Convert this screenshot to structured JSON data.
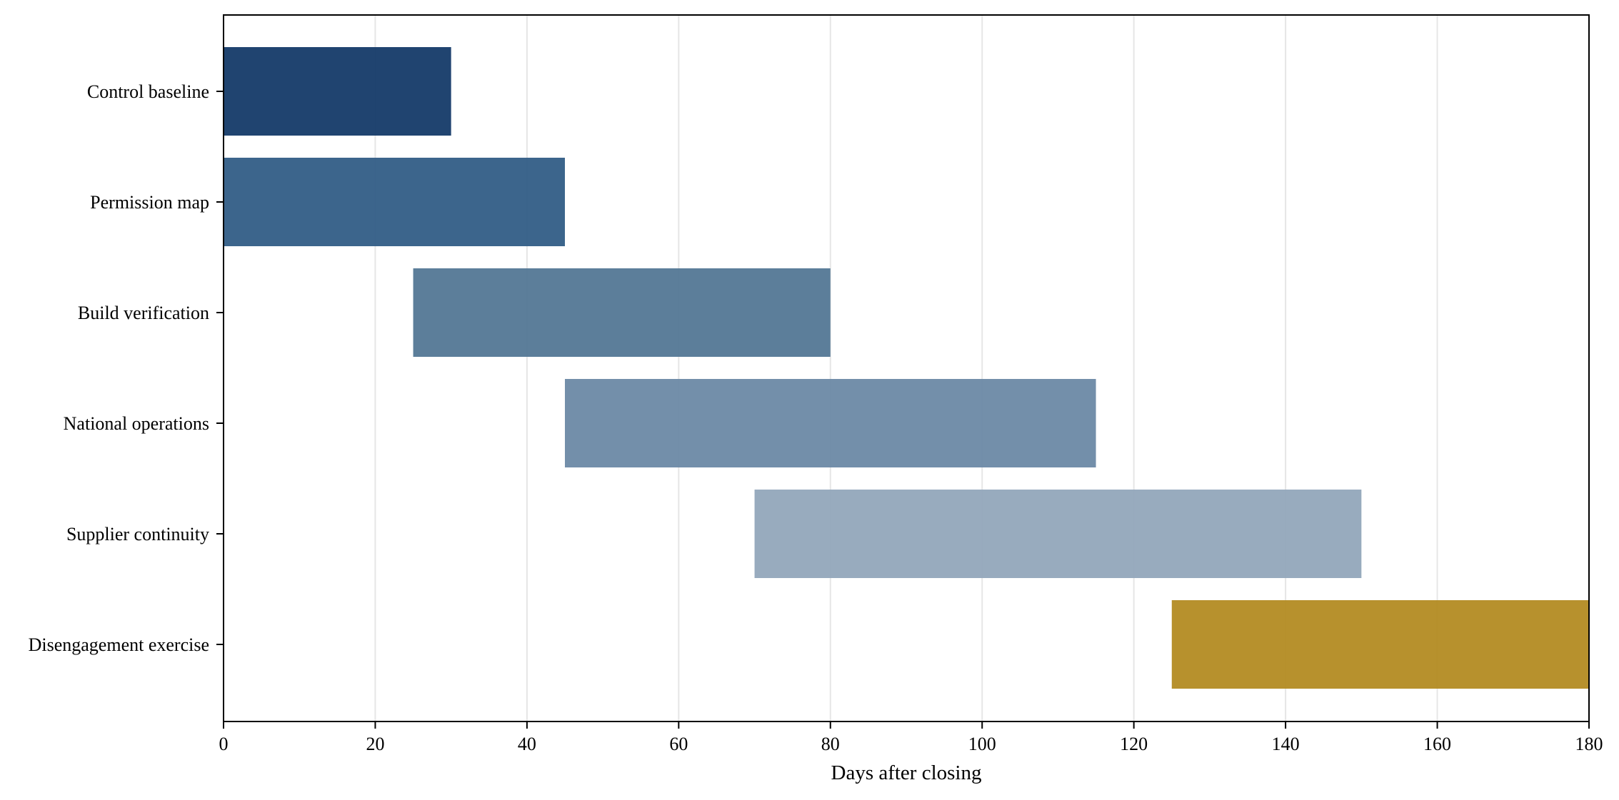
{
  "chart_data": {
    "type": "bar",
    "orientation": "horizontal",
    "title": "",
    "xlabel": "Days after closing",
    "ylabel": "",
    "xlim": [
      0,
      180
    ],
    "xticks": [
      "0",
      "20",
      "40",
      "60",
      "80",
      "100",
      "120",
      "140",
      "160",
      "180"
    ],
    "grid": "vertical",
    "legend": "none",
    "tasks": [
      {
        "label": "Control baseline",
        "start": 0,
        "end": 30,
        "color": "#143a68"
      },
      {
        "label": "Permission map",
        "start": 0,
        "end": 45,
        "color": "#325d86"
      },
      {
        "label": "Build verification",
        "start": 25,
        "end": 80,
        "color": "#537795"
      },
      {
        "label": "National operations",
        "start": 45,
        "end": 115,
        "color": "#6c89a5"
      },
      {
        "label": "Supplier continuity",
        "start": 70,
        "end": 150,
        "color": "#92a6ba"
      },
      {
        "label": "Disengagement exercise",
        "start": 125,
        "end": 180,
        "color": "#b38b22"
      }
    ]
  }
}
